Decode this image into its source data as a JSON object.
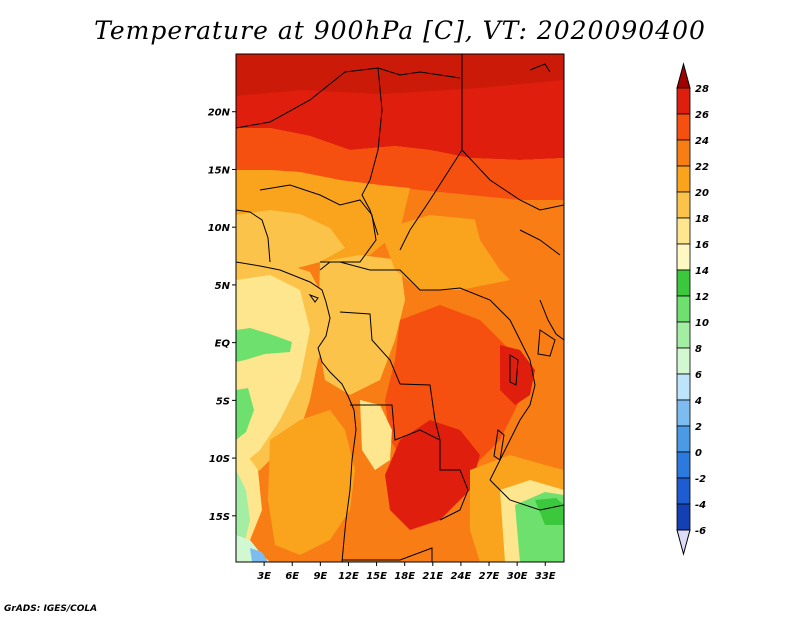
{
  "title": "Temperature at 900hPa [C], VT: 2020090400",
  "footer": "GrADS: IGES/COLA",
  "map": {
    "lon_range": [
      0,
      35
    ],
    "lat_range": [
      -19,
      25
    ],
    "lat_ticks": [
      {
        "label": "20N",
        "value": 20
      },
      {
        "label": "15N",
        "value": 15
      },
      {
        "label": "10N",
        "value": 10
      },
      {
        "label": "5N",
        "value": 5
      },
      {
        "label": "EQ",
        "value": 0
      },
      {
        "label": "5S",
        "value": -5
      },
      {
        "label": "10S",
        "value": -10
      },
      {
        "label": "15S",
        "value": -15
      }
    ],
    "lon_ticks": [
      {
        "label": "3E",
        "value": 3
      },
      {
        "label": "6E",
        "value": 6
      },
      {
        "label": "9E",
        "value": 9
      },
      {
        "label": "12E",
        "value": 12
      },
      {
        "label": "15E",
        "value": 15
      },
      {
        "label": "18E",
        "value": 18
      },
      {
        "label": "21E",
        "value": 21
      },
      {
        "label": "24E",
        "value": 24
      },
      {
        "label": "27E",
        "value": 27
      },
      {
        "label": "30E",
        "value": 30
      },
      {
        "label": "33E",
        "value": 33
      }
    ]
  },
  "colorbar": {
    "levels": [
      "28",
      "26",
      "24",
      "22",
      "20",
      "18",
      "16",
      "14",
      "12",
      "10",
      "8",
      "6",
      "4",
      "2",
      "0",
      "-2",
      "-4",
      "-6"
    ],
    "colors": [
      "#a00000",
      "#e01e0e",
      "#f5500f",
      "#f87d14",
      "#faa41e",
      "#fbc34a",
      "#fde68e",
      "#fff8c2",
      "#3cc83c",
      "#6ee06e",
      "#a4eea4",
      "#d2f8d2",
      "#bde4fa",
      "#7cbcf0",
      "#4a9ae6",
      "#2c7ae0",
      "#1e5cd2",
      "#1440b4",
      "#0a1478",
      "#dcdcfa"
    ]
  }
}
